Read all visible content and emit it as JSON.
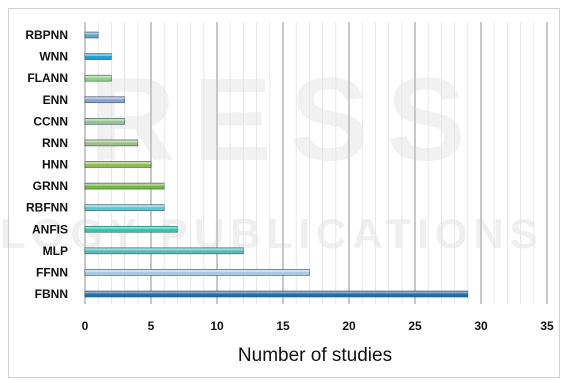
{
  "watermark": {
    "text_top": "RESS",
    "text_bottom": "LOGY PUBLICATIONS"
  },
  "chart_data": {
    "type": "bar",
    "orientation": "horizontal",
    "categories": [
      "RBPNN",
      "WNN",
      "FLANN",
      "ENN",
      "CCNN",
      "RNN",
      "HNN",
      "GRNN",
      "RBFNN",
      "ANFIS",
      "MLP",
      "FFNN",
      "FBNN"
    ],
    "values": [
      1,
      2,
      2,
      3,
      3,
      4,
      5,
      6,
      6,
      7,
      12,
      17,
      29
    ],
    "colors": [
      "#5fa3c8",
      "#1f9fd6",
      "#8fcf86",
      "#8e9fce",
      "#9bc08a",
      "#9ebd86",
      "#8dbb55",
      "#78b644",
      "#5cc8d4",
      "#1ed3a7",
      "#5ab9ba",
      "#a8c9e6",
      "#1f6ea8"
    ],
    "xlabel": "Number of studies",
    "ylabel": "",
    "xlim": [
      0,
      35
    ],
    "xticks": [
      0,
      5,
      10,
      15,
      20,
      25,
      30,
      35
    ],
    "grid": "vertical",
    "legend": "none"
  }
}
